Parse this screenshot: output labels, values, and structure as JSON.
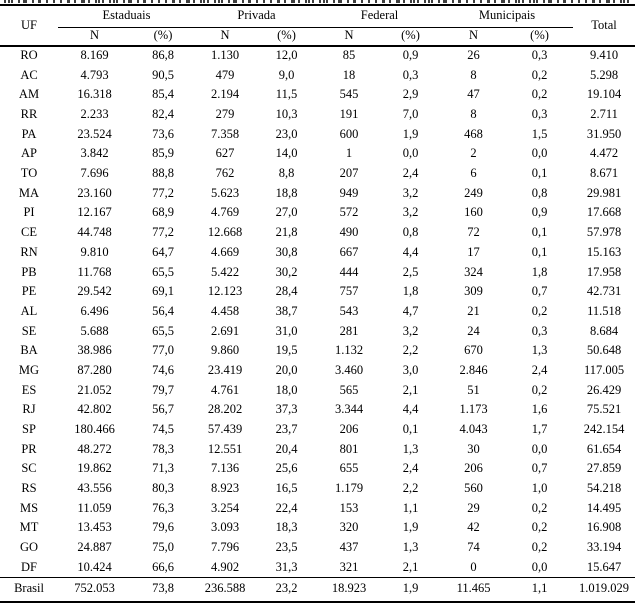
{
  "header": {
    "uf": "UF",
    "total": "Total",
    "n": "N",
    "pct": "(%)",
    "groups": [
      "Estaduais",
      "Privada",
      "Federal",
      "Municipais"
    ]
  },
  "rows": [
    {
      "uf": "RO",
      "values": [
        "8.169",
        "86,8",
        "1.130",
        "12,0",
        "85",
        "0,9",
        "26",
        "0,3",
        "9.410"
      ]
    },
    {
      "uf": "AC",
      "values": [
        "4.793",
        "90,5",
        "479",
        "9,0",
        "18",
        "0,3",
        "8",
        "0,2",
        "5.298"
      ]
    },
    {
      "uf": "AM",
      "values": [
        "16.318",
        "85,4",
        "2.194",
        "11,5",
        "545",
        "2,9",
        "47",
        "0,2",
        "19.104"
      ]
    },
    {
      "uf": "RR",
      "values": [
        "2.233",
        "82,4",
        "279",
        "10,3",
        "191",
        "7,0",
        "8",
        "0,3",
        "2.711"
      ]
    },
    {
      "uf": "PA",
      "values": [
        "23.524",
        "73,6",
        "7.358",
        "23,0",
        "600",
        "1,9",
        "468",
        "1,5",
        "31.950"
      ]
    },
    {
      "uf": "AP",
      "values": [
        "3.842",
        "85,9",
        "627",
        "14,0",
        "1",
        "0,0",
        "2",
        "0,0",
        "4.472"
      ]
    },
    {
      "uf": "TO",
      "values": [
        "7.696",
        "88,8",
        "762",
        "8,8",
        "207",
        "2,4",
        "6",
        "0,1",
        "8.671"
      ]
    },
    {
      "uf": "MA",
      "values": [
        "23.160",
        "77,2",
        "5.623",
        "18,8",
        "949",
        "3,2",
        "249",
        "0,8",
        "29.981"
      ]
    },
    {
      "uf": "PI",
      "values": [
        "12.167",
        "68,9",
        "4.769",
        "27,0",
        "572",
        "3,2",
        "160",
        "0,9",
        "17.668"
      ]
    },
    {
      "uf": "CE",
      "values": [
        "44.748",
        "77,2",
        "12.668",
        "21,8",
        "490",
        "0,8",
        "72",
        "0,1",
        "57.978"
      ]
    },
    {
      "uf": "RN",
      "values": [
        "9.810",
        "64,7",
        "4.669",
        "30,8",
        "667",
        "4,4",
        "17",
        "0,1",
        "15.163"
      ]
    },
    {
      "uf": "PB",
      "values": [
        "11.768",
        "65,5",
        "5.422",
        "30,2",
        "444",
        "2,5",
        "324",
        "1,8",
        "17.958"
      ]
    },
    {
      "uf": "PE",
      "values": [
        "29.542",
        "69,1",
        "12.123",
        "28,4",
        "757",
        "1,8",
        "309",
        "0,7",
        "42.731"
      ]
    },
    {
      "uf": "AL",
      "values": [
        "6.496",
        "56,4",
        "4.458",
        "38,7",
        "543",
        "4,7",
        "21",
        "0,2",
        "11.518"
      ]
    },
    {
      "uf": "SE",
      "values": [
        "5.688",
        "65,5",
        "2.691",
        "31,0",
        "281",
        "3,2",
        "24",
        "0,3",
        "8.684"
      ]
    },
    {
      "uf": "BA",
      "values": [
        "38.986",
        "77,0",
        "9.860",
        "19,5",
        "1.132",
        "2,2",
        "670",
        "1,3",
        "50.648"
      ]
    },
    {
      "uf": "MG",
      "values": [
        "87.280",
        "74,6",
        "23.419",
        "20,0",
        "3.460",
        "3,0",
        "2.846",
        "2,4",
        "117.005"
      ]
    },
    {
      "uf": "ES",
      "values": [
        "21.052",
        "79,7",
        "4.761",
        "18,0",
        "565",
        "2,1",
        "51",
        "0,2",
        "26.429"
      ]
    },
    {
      "uf": "RJ",
      "values": [
        "42.802",
        "56,7",
        "28.202",
        "37,3",
        "3.344",
        "4,4",
        "1.173",
        "1,6",
        "75.521"
      ]
    },
    {
      "uf": "SP",
      "values": [
        "180.466",
        "74,5",
        "57.439",
        "23,7",
        "206",
        "0,1",
        "4.043",
        "1,7",
        "242.154"
      ]
    },
    {
      "uf": "PR",
      "values": [
        "48.272",
        "78,3",
        "12.551",
        "20,4",
        "801",
        "1,3",
        "30",
        "0,0",
        "61.654"
      ]
    },
    {
      "uf": "SC",
      "values": [
        "19.862",
        "71,3",
        "7.136",
        "25,6",
        "655",
        "2,4",
        "206",
        "0,7",
        "27.859"
      ]
    },
    {
      "uf": "RS",
      "values": [
        "43.556",
        "80,3",
        "8.923",
        "16,5",
        "1.179",
        "2,2",
        "560",
        "1,0",
        "54.218"
      ]
    },
    {
      "uf": "MS",
      "values": [
        "11.059",
        "76,3",
        "3.254",
        "22,4",
        "153",
        "1,1",
        "29",
        "0,2",
        "14.495"
      ]
    },
    {
      "uf": "MT",
      "values": [
        "13.453",
        "79,6",
        "3.093",
        "18,3",
        "320",
        "1,9",
        "42",
        "0,2",
        "16.908"
      ]
    },
    {
      "uf": "GO",
      "values": [
        "24.887",
        "75,0",
        "7.796",
        "23,5",
        "437",
        "1,3",
        "74",
        "0,2",
        "33.194"
      ]
    },
    {
      "uf": "DF",
      "values": [
        "10.424",
        "66,6",
        "4.902",
        "31,3",
        "321",
        "2,1",
        "0",
        "0,0",
        "15.647"
      ]
    }
  ],
  "footer": {
    "uf": "Brasil",
    "values": [
      "752.053",
      "73,8",
      "236.588",
      "23,2",
      "18.923",
      "1,9",
      "11.465",
      "1,1",
      "1.019.029"
    ]
  }
}
